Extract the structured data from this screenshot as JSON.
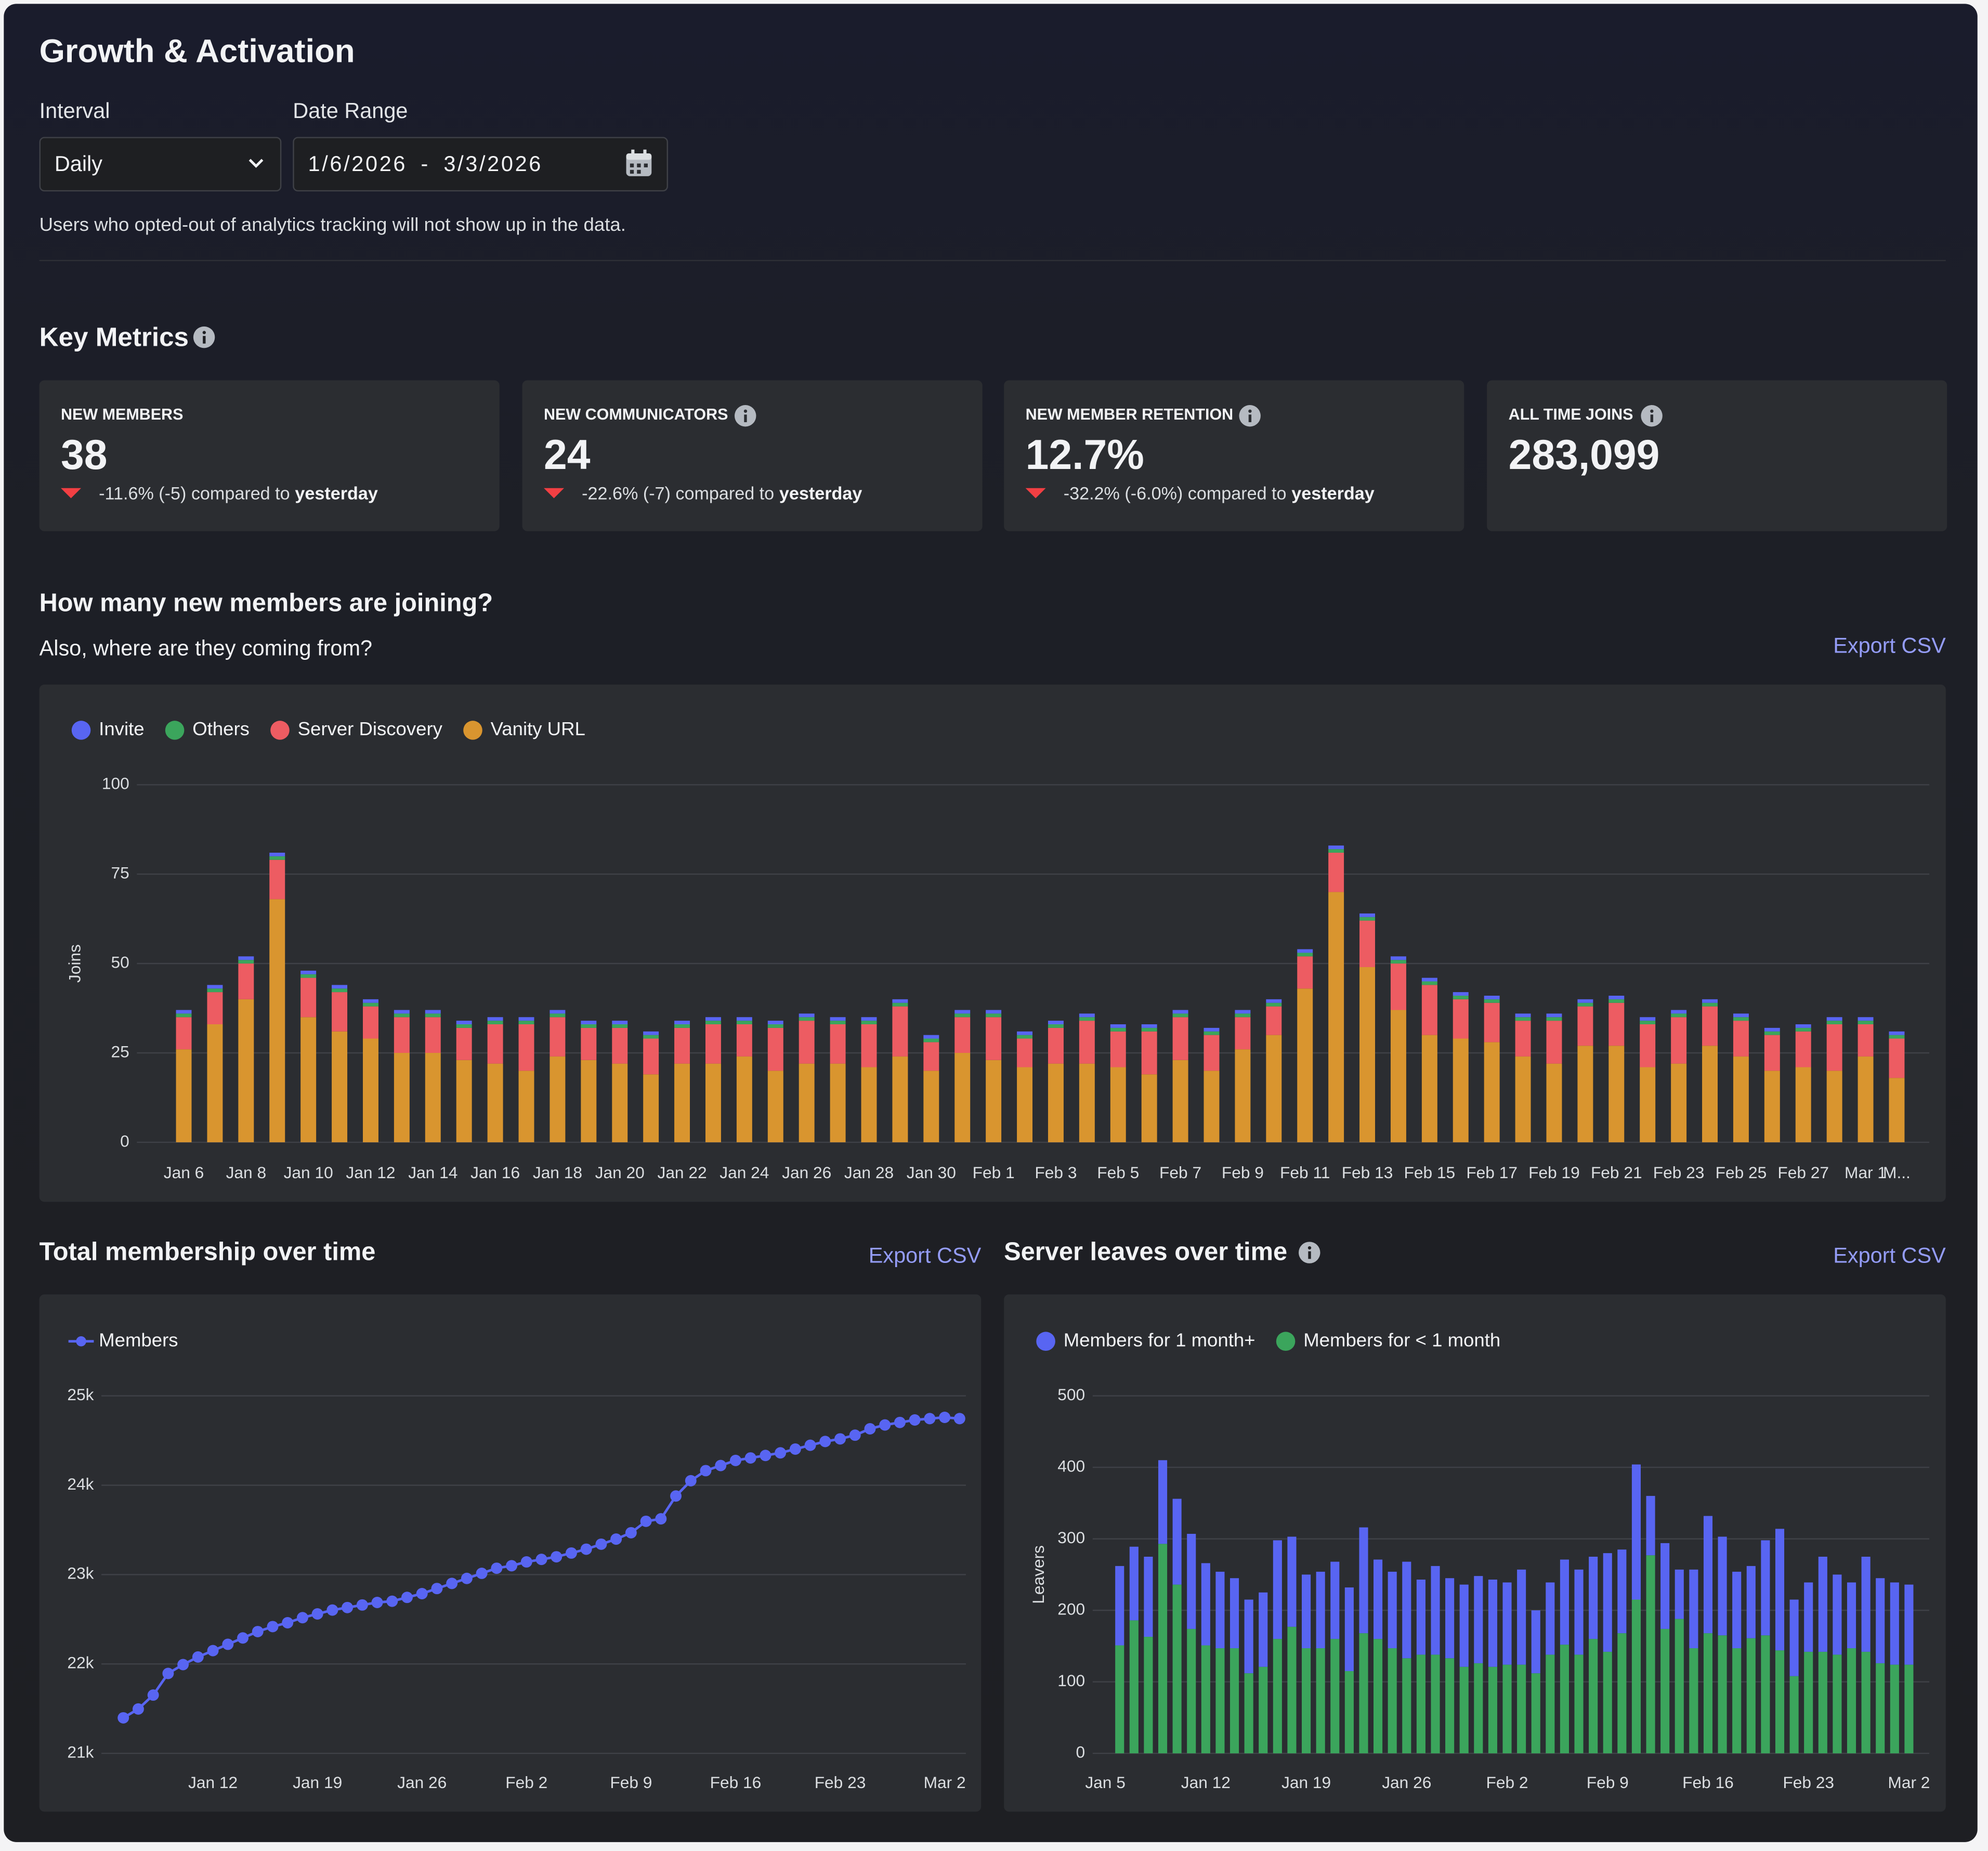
{
  "header": {
    "title": "Growth & Activation"
  },
  "filters": {
    "interval_label": "Interval",
    "interval_value": "Daily",
    "date_range_label": "Date Range",
    "date_start": "1/6/2026",
    "date_separator": "-",
    "date_end": "3/3/2026",
    "note": "Users who opted-out of analytics tracking will not show up in the data."
  },
  "key_metrics": {
    "title": "Key Metrics",
    "cards": [
      {
        "label": "NEW MEMBERS",
        "value": "38",
        "change": "-11.6% (-5) compared to",
        "period": "yesterday"
      },
      {
        "label": "NEW COMMUNICATORS",
        "value": "24",
        "change": "-22.6% (-7) compared to",
        "period": "yesterday"
      },
      {
        "label": "NEW MEMBER RETENTION",
        "value": "12.7%",
        "change": "-32.2% (-6.0%) compared to",
        "period": "yesterday"
      },
      {
        "label": "ALL TIME JOINS",
        "value": "283,099"
      }
    ]
  },
  "sections": [
    {
      "title": "How many new members are joining?",
      "subtitle": "Also, where are they coming from?",
      "action": "Export CSV"
    },
    {
      "title": "Total membership over time",
      "action": "Export CSV"
    },
    {
      "title": "Server leaves over time",
      "action": "Export CSV"
    }
  ],
  "chart_data": [
    {
      "type": "bar",
      "stacked": true,
      "y_label": "Joins",
      "grid": true,
      "categories": [
        "Jan 6",
        null,
        "Jan 8",
        null,
        "Jan 10",
        null,
        "Jan 12",
        null,
        "Jan 14",
        null,
        "Jan 16",
        null,
        "Jan 18",
        null,
        "Jan 20",
        null,
        "Jan 22",
        null,
        "Jan 24",
        null,
        "Jan 26",
        null,
        "Jan 28",
        null,
        "Jan 30",
        null,
        "Feb 1",
        null,
        "Feb 3",
        null,
        "Feb 5",
        null,
        "Feb 7",
        null,
        "Feb 9",
        null,
        "Feb 11",
        null,
        "Feb 13",
        null,
        "Feb 15",
        null,
        "Feb 17",
        null,
        "Feb 19",
        null,
        "Feb 21",
        null,
        "Feb 23",
        null,
        "Feb 25",
        null,
        "Feb 27",
        null,
        "Mar 1",
        "M..."
      ],
      "series": [
        {
          "name": "Invite",
          "color": "#5865f2",
          "values": [
            1,
            1,
            1,
            1,
            1,
            1,
            1,
            1,
            1,
            1,
            1,
            1,
            1,
            1,
            1,
            1,
            1,
            1,
            1,
            1,
            1,
            1,
            1,
            1,
            1,
            1,
            1,
            1,
            1,
            1,
            1,
            1,
            1,
            1,
            1,
            1,
            1,
            1,
            1,
            1,
            1,
            1,
            1,
            1,
            1,
            1,
            1,
            1,
            1,
            1,
            1,
            1,
            1,
            1,
            1,
            1
          ]
        },
        {
          "name": "Others",
          "color": "#3ba55c",
          "values": [
            1,
            1,
            1,
            1,
            1,
            1,
            1,
            1,
            1,
            1,
            1,
            1,
            1,
            1,
            1,
            1,
            1,
            1,
            1,
            1,
            1,
            1,
            1,
            1,
            1,
            1,
            1,
            1,
            1,
            1,
            1,
            1,
            1,
            1,
            1,
            1,
            1,
            1,
            1,
            1,
            1,
            1,
            1,
            1,
            1,
            1,
            1,
            1,
            1,
            1,
            1,
            1,
            1,
            1,
            1,
            1
          ]
        },
        {
          "name": "Server Discovery",
          "color": "#ed5c62",
          "values": [
            9,
            9,
            10,
            11,
            11,
            11,
            9,
            10,
            10,
            9,
            11,
            13,
            11,
            9,
            10,
            10,
            10,
            11,
            9,
            12,
            12,
            11,
            12,
            14,
            8,
            10,
            12,
            8,
            10,
            12,
            10,
            12,
            12,
            10,
            9,
            8,
            9,
            11,
            13,
            13,
            14,
            11,
            11,
            10,
            12,
            11,
            12,
            12,
            13,
            11,
            10,
            10,
            10,
            13,
            9,
            11
          ]
        },
        {
          "name": "Vanity URL",
          "color": "#d9952f",
          "values": [
            26,
            33,
            40,
            68,
            35,
            31,
            29,
            25,
            25,
            23,
            22,
            20,
            24,
            23,
            22,
            19,
            22,
            22,
            24,
            20,
            22,
            22,
            21,
            24,
            20,
            25,
            23,
            21,
            22,
            22,
            21,
            19,
            23,
            20,
            26,
            30,
            43,
            70,
            49,
            37,
            30,
            29,
            28,
            24,
            22,
            27,
            27,
            21,
            22,
            27,
            24,
            20,
            21,
            20,
            24,
            18
          ]
        }
      ],
      "ylim": [
        0,
        100
      ],
      "yticks": [
        0,
        25,
        50,
        75,
        100
      ]
    },
    {
      "type": "line",
      "grid": true,
      "categories": [
        null,
        null,
        null,
        null,
        null,
        null,
        "Jan 12",
        null,
        null,
        null,
        null,
        null,
        null,
        "Jan 19",
        null,
        null,
        null,
        null,
        null,
        null,
        "Jan 26",
        null,
        null,
        null,
        null,
        null,
        null,
        "Feb 2",
        null,
        null,
        null,
        null,
        null,
        null,
        "Feb 9",
        null,
        null,
        null,
        null,
        null,
        null,
        "Feb 16",
        null,
        null,
        null,
        null,
        null,
        null,
        "Feb 23",
        null,
        null,
        null,
        null,
        null,
        null,
        "Mar 2",
        null
      ],
      "series": [
        {
          "name": "Members",
          "color": "#5865f2",
          "values": [
            21397,
            21496,
            21652,
            21894,
            21993,
            22078,
            22149,
            22220,
            22291,
            22362,
            22418,
            22461,
            22518,
            22560,
            22603,
            22631,
            22660,
            22688,
            22702,
            22745,
            22787,
            22844,
            22901,
            22957,
            23014,
            23071,
            23099,
            23142,
            23170,
            23199,
            23241,
            23284,
            23340,
            23397,
            23468,
            23596,
            23624,
            23879,
            24050,
            24163,
            24220,
            24277,
            24305,
            24333,
            24362,
            24404,
            24447,
            24489,
            24518,
            24560,
            24631,
            24674,
            24702,
            24730,
            24745,
            24759,
            24745
          ]
        }
      ],
      "ylim": [
        21000,
        25000
      ],
      "yticks": [
        {
          "value": 21000,
          "label": "21k"
        },
        {
          "value": 22000,
          "label": "22k"
        },
        {
          "value": 23000,
          "label": "23k"
        },
        {
          "value": 24000,
          "label": "24k"
        },
        {
          "value": 25000,
          "label": "25k"
        }
      ]
    },
    {
      "type": "bar",
      "stacked": true,
      "y_label": "Leavers",
      "grid": true,
      "categories": [
        "Jan 5",
        null,
        null,
        null,
        null,
        null,
        null,
        "Jan 12",
        null,
        null,
        null,
        null,
        null,
        null,
        "Jan 19",
        null,
        null,
        null,
        null,
        null,
        null,
        "Jan 26",
        null,
        null,
        null,
        null,
        null,
        null,
        "Feb 2",
        null,
        null,
        null,
        null,
        null,
        null,
        "Feb 9",
        null,
        null,
        null,
        null,
        null,
        null,
        "Feb 16",
        null,
        null,
        null,
        null,
        null,
        null,
        "Feb 23",
        null,
        null,
        null,
        null,
        null,
        null,
        "Mar 2"
      ],
      "series": [
        {
          "name": "Members for 1 month+",
          "color": "#5865f2",
          "values": [
            null,
            111,
            103,
            112,
            117,
            120,
            133,
            115,
            107,
            98,
            103,
            104,
            138,
            126,
            103,
            107,
            108,
            117,
            148,
            111,
            107,
            135,
            105,
            124,
            112,
            115,
            122,
            122,
            115,
            133,
            88,
            101,
            119,
            119,
            115,
            138,
            117,
            189,
            83,
            120,
            69,
            110,
            164,
            138,
            107,
            101,
            133,
            170,
            107,
            97,
            133,
            112,
            92,
            133,
            119,
            115,
            112
          ]
        },
        {
          "name": "Members for < 1 month",
          "color": "#3ba55c",
          "values": [
            null,
            151,
            186,
            163,
            293,
            236,
            174,
            151,
            147,
            147,
            112,
            121,
            160,
            177,
            147,
            147,
            160,
            115,
            168,
            160,
            147,
            133,
            138,
            138,
            133,
            121,
            126,
            121,
            124,
            124,
            112,
            138,
            152,
            138,
            160,
            142,
            168,
            215,
            277,
            174,
            188,
            147,
            168,
            165,
            147,
            161,
            165,
            144,
            108,
            142,
            142,
            138,
            147,
            142,
            126,
            124,
            124
          ]
        }
      ],
      "ylim": [
        0,
        500
      ],
      "yticks": [
        0,
        100,
        200,
        300,
        400,
        500
      ]
    }
  ]
}
